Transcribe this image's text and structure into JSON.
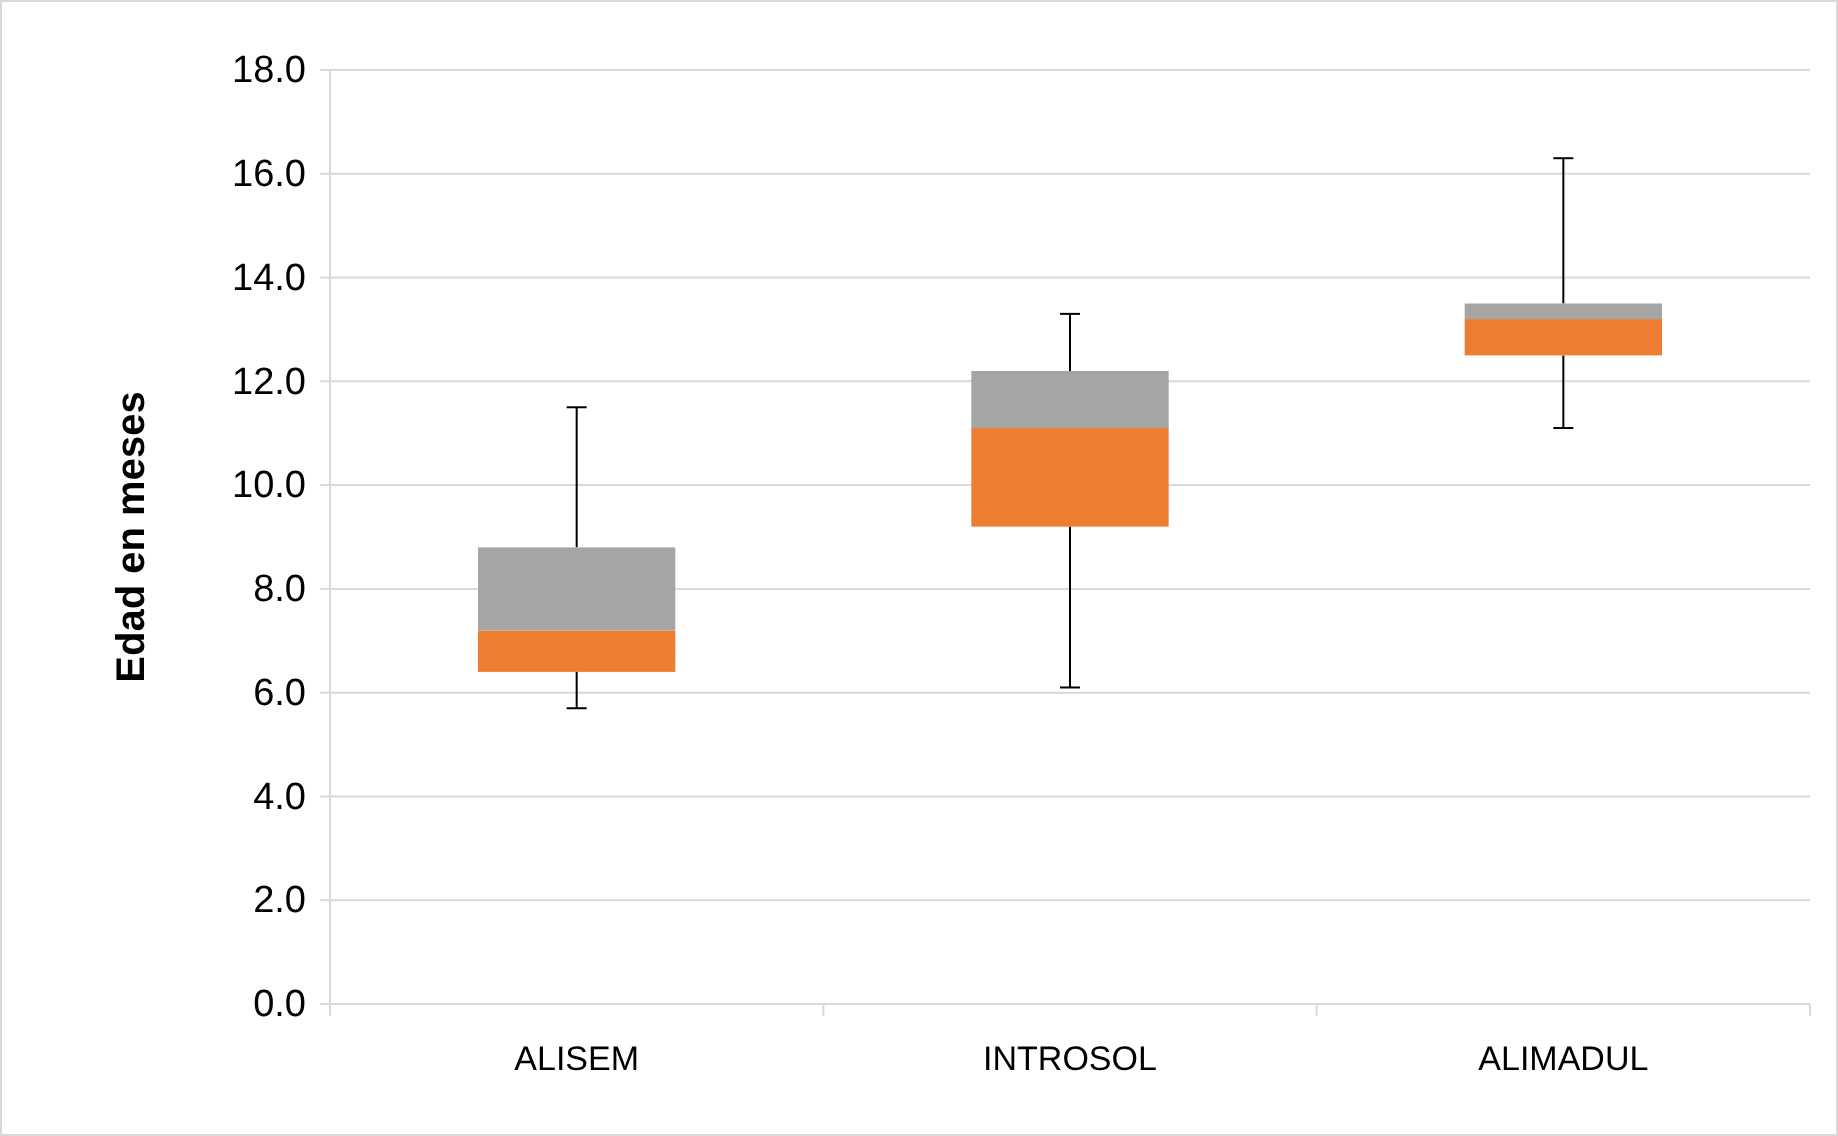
{
  "chart_data": {
    "type": "box",
    "ylabel": "Edad en meses",
    "categories": [
      "ALISEM",
      "INTROSOL",
      "ALIMADUL"
    ],
    "boxes": [
      {
        "low": 5.7,
        "q1": 6.4,
        "median": 7.2,
        "q3": 8.8,
        "high": 11.5
      },
      {
        "low": 6.1,
        "q1": 9.2,
        "median": 11.1,
        "q3": 12.2,
        "high": 13.3
      },
      {
        "low": 11.1,
        "q1": 12.5,
        "median": 13.2,
        "q3": 13.5,
        "high": 16.3
      }
    ],
    "colors": [
      [
        "#ed7d31",
        "#a5a5a5"
      ],
      [
        "#ed7d31",
        "#a5a5a5"
      ],
      [
        "#ed7d31",
        "#a5a5a5"
      ]
    ],
    "ylim": [
      0,
      18
    ],
    "yticks": [
      {
        "value": 0,
        "label": "0.0"
      },
      {
        "value": 2,
        "label": "2.0"
      },
      {
        "value": 4,
        "label": "4.0"
      },
      {
        "value": 6,
        "label": "6.0"
      },
      {
        "value": 8,
        "label": "8.0"
      },
      {
        "value": 10,
        "label": "10.0"
      },
      {
        "value": 12,
        "label": "12.0"
      },
      {
        "value": 14,
        "label": "14.0"
      },
      {
        "value": 16,
        "label": "16.0"
      },
      {
        "value": 18,
        "label": "18.0"
      }
    ],
    "grid": "y"
  }
}
